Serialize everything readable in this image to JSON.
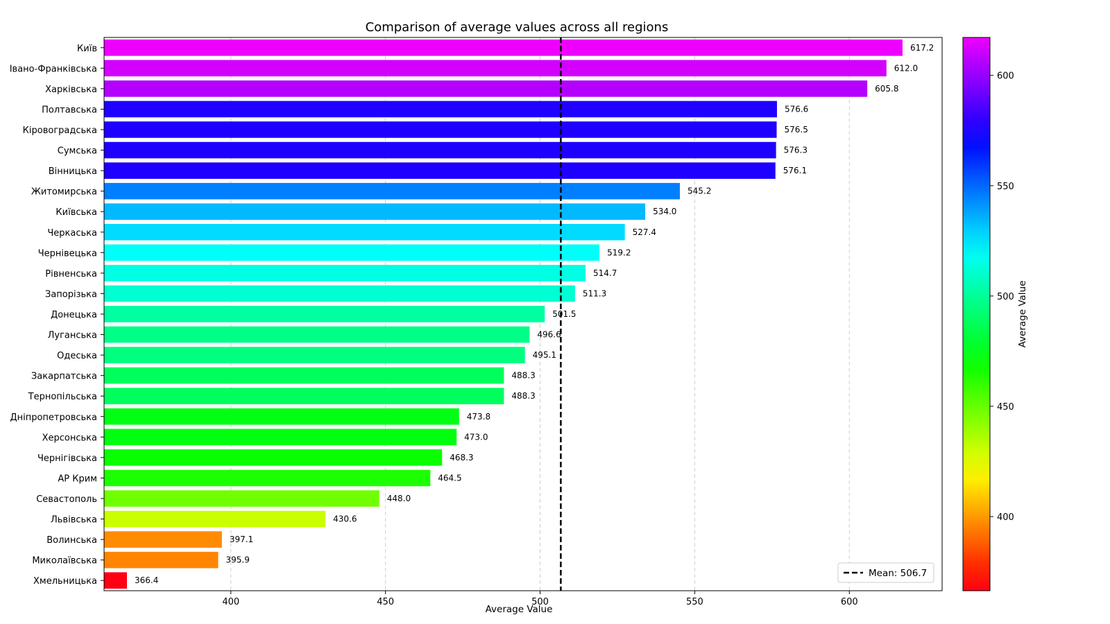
{
  "chart_data": {
    "type": "bar",
    "orientation": "horizontal",
    "title": "Comparison of average values across all regions",
    "xlabel": "Average Value",
    "ylabel": "",
    "xlim": [
      359,
      630
    ],
    "xticks": [
      400,
      450,
      500,
      550,
      600
    ],
    "grid": "x-dashed",
    "categories": [
      "Київ",
      "Івано-Франківська",
      "Харківська",
      "Полтавська",
      "Кіровоградська",
      "Сумська",
      "Вінницька",
      "Житомирська",
      "Київська",
      "Черкаська",
      "Чернівецька",
      "Рівненська",
      "Запорізька",
      "Донецька",
      "Луганська",
      "Одеська",
      "Закарпатська",
      "Тернопільська",
      "Дніпропетровська",
      "Херсонська",
      "Чернігівська",
      "АР Крим",
      "Севастополь",
      "Львівська",
      "Волинська",
      "Миколаївська",
      "Хмельницька"
    ],
    "values": [
      617.2,
      612.0,
      605.8,
      576.6,
      576.5,
      576.3,
      576.1,
      545.2,
      534.0,
      527.4,
      519.2,
      514.7,
      511.3,
      501.5,
      496.6,
      495.1,
      488.3,
      488.3,
      473.8,
      473.0,
      468.3,
      464.5,
      448.0,
      430.6,
      397.1,
      395.9,
      366.4
    ],
    "value_labels": [
      "617.2",
      "612.0",
      "605.8",
      "576.6",
      "576.5",
      "576.3",
      "576.1",
      "545.2",
      "534.0",
      "527.4",
      "519.2",
      "514.7",
      "511.3",
      "501.5",
      "496.6",
      "495.1",
      "488.3",
      "488.3",
      "473.8",
      "473.0",
      "468.3",
      "464.5",
      "448.0",
      "430.6",
      "397.1",
      "395.9",
      "366.4"
    ],
    "mean": {
      "value": 506.7,
      "label": "Mean: 506.7",
      "style": "dashed",
      "color": "#000000"
    },
    "legend": {
      "placement": "lower-right"
    },
    "colorbar": {
      "label": "Average Value",
      "colormap": "gist_rainbow",
      "range": [
        366.4,
        617.2
      ],
      "ticks": [
        400,
        450,
        500,
        550,
        600
      ]
    }
  }
}
